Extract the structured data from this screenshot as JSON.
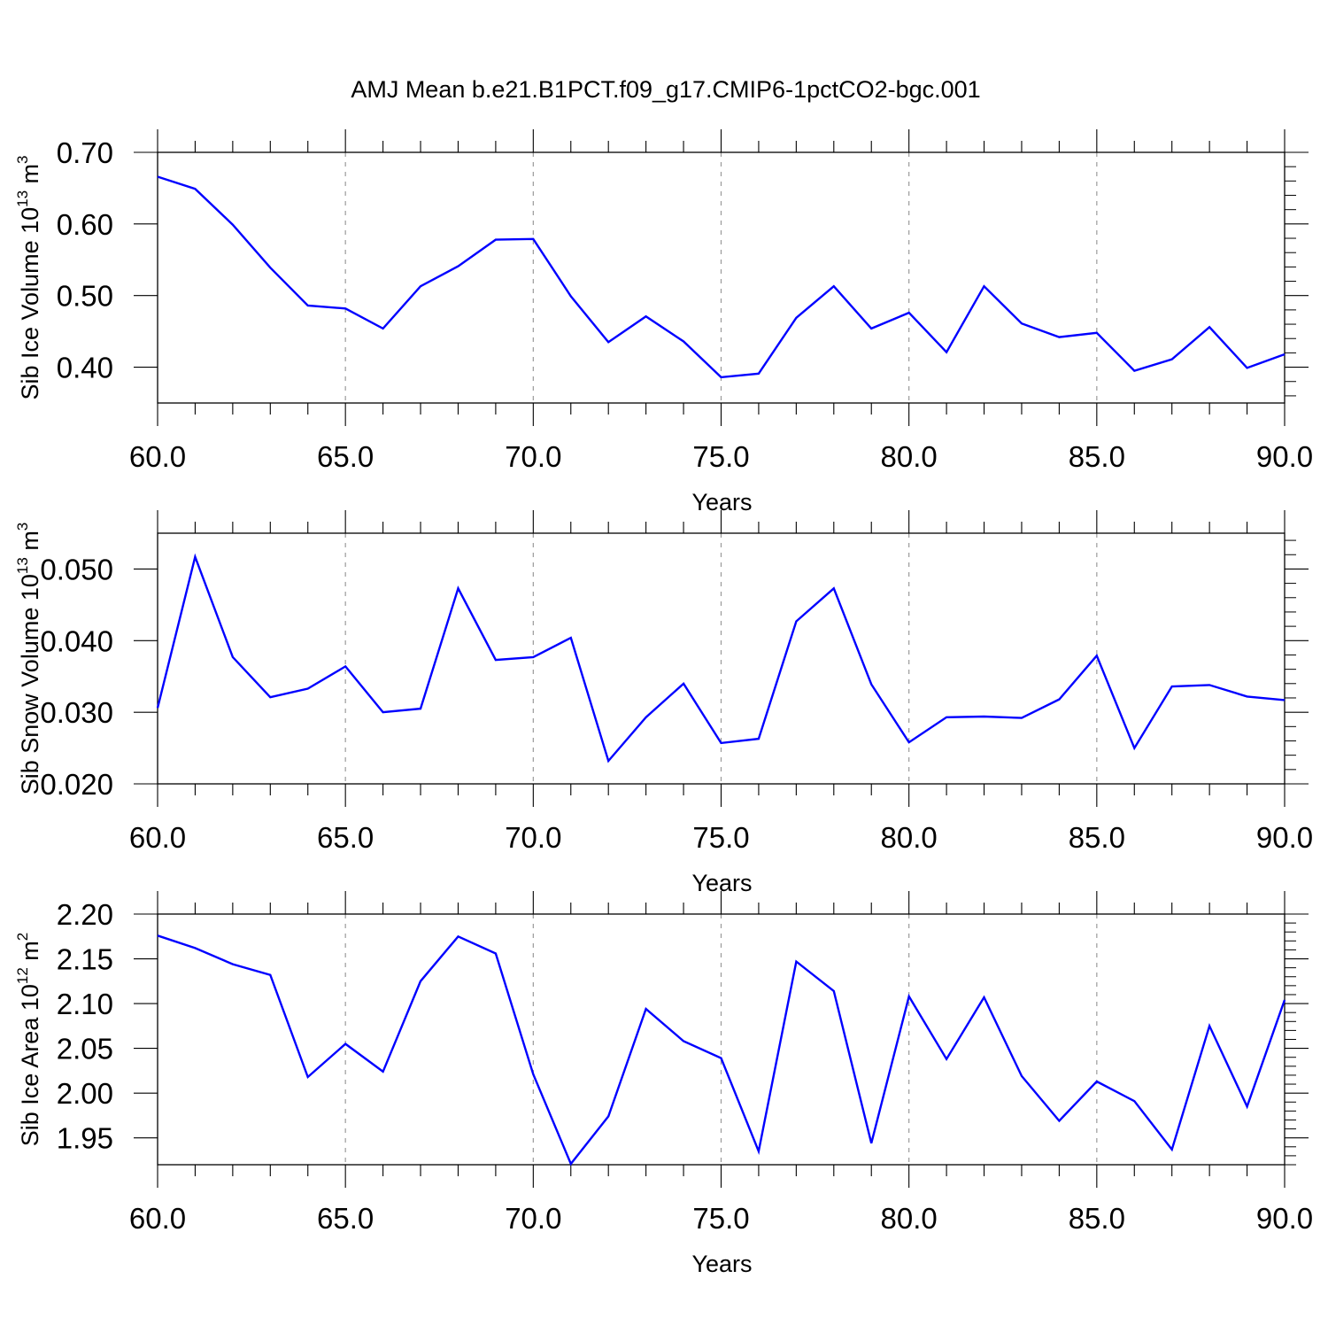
{
  "figure_title": "AMJ Mean b.e21.B1PCT.f09_g17.CMIP6-1pctCO2-bgc.001",
  "colors": {
    "line": "#0000ff",
    "axis": "#000000",
    "grid": "#9a9a9a"
  },
  "chart_data": [
    {
      "type": "line",
      "title": "",
      "xlabel": "Years",
      "ylabel": {
        "text": "Sib Ice Volume 10",
        "sup": "13",
        "tail": " m",
        "sup2": "3"
      },
      "xlim": [
        60,
        90
      ],
      "ylim": [
        0.35,
        0.7
      ],
      "xticks": [
        60,
        65,
        70,
        75,
        80,
        85,
        90
      ],
      "xtick_labels": [
        "60.0",
        "65.0",
        "70.0",
        "75.0",
        "80.0",
        "85.0",
        "90.0"
      ],
      "yticks": [
        0.4,
        0.5,
        0.6,
        0.7
      ],
      "ytick_labels": [
        "0.40",
        "0.50",
        "0.60",
        "0.70"
      ],
      "grid": "vertical dashed at major x ticks",
      "x": [
        60,
        61,
        62,
        63,
        64,
        65,
        66,
        67,
        68,
        69,
        70,
        71,
        72,
        73,
        74,
        75,
        76,
        77,
        78,
        79,
        80,
        81,
        82,
        83,
        84,
        85,
        86,
        87,
        88,
        89,
        90
      ],
      "series": [
        {
          "values": [
            0.666,
            0.649,
            0.599,
            0.539,
            0.486,
            0.482,
            0.454,
            0.513,
            0.541,
            0.578,
            0.579,
            0.499,
            0.435,
            0.471,
            0.436,
            0.386,
            0.391,
            0.469,
            0.513,
            0.454,
            0.476,
            0.421,
            0.513,
            0.461,
            0.442,
            0.448,
            0.395,
            0.411,
            0.456,
            0.399,
            0.418
          ]
        }
      ]
    },
    {
      "type": "line",
      "title": "",
      "xlabel": "Years",
      "ylabel": {
        "text": "Sib Snow Volume 10",
        "sup": "13",
        "tail": " m",
        "sup2": "3"
      },
      "xlim": [
        60,
        90
      ],
      "ylim": [
        0.02,
        0.055
      ],
      "xticks": [
        60,
        65,
        70,
        75,
        80,
        85,
        90
      ],
      "xtick_labels": [
        "60.0",
        "65.0",
        "70.0",
        "75.0",
        "80.0",
        "85.0",
        "90.0"
      ],
      "yticks": [
        0.02,
        0.03,
        0.04,
        0.05
      ],
      "ytick_labels": [
        "0.020",
        "0.030",
        "0.040",
        "0.050"
      ],
      "grid": "vertical dashed at major x ticks",
      "x": [
        60,
        61,
        62,
        63,
        64,
        65,
        66,
        67,
        68,
        69,
        70,
        71,
        72,
        73,
        74,
        75,
        76,
        77,
        78,
        79,
        80,
        81,
        82,
        83,
        84,
        85,
        86,
        87,
        88,
        89,
        90
      ],
      "series": [
        {
          "values": [
            0.0306,
            0.0517,
            0.0377,
            0.0321,
            0.0333,
            0.0364,
            0.03,
            0.0305,
            0.0473,
            0.0373,
            0.0377,
            0.0404,
            0.0232,
            0.0293,
            0.034,
            0.0257,
            0.0263,
            0.0427,
            0.0473,
            0.0339,
            0.0258,
            0.0293,
            0.0294,
            0.0292,
            0.0318,
            0.0379,
            0.025,
            0.0336,
            0.0338,
            0.0322,
            0.0317
          ]
        }
      ]
    },
    {
      "type": "line",
      "title": "",
      "xlabel": "Years",
      "ylabel": {
        "text": "Sib Ice Area 10",
        "sup": "12",
        "tail": " m",
        "sup2": "2"
      },
      "xlim": [
        60,
        90
      ],
      "ylim": [
        1.92,
        2.2
      ],
      "xticks": [
        60,
        65,
        70,
        75,
        80,
        85,
        90
      ],
      "xtick_labels": [
        "60.0",
        "65.0",
        "70.0",
        "75.0",
        "80.0",
        "85.0",
        "90.0"
      ],
      "yticks": [
        1.95,
        2.0,
        2.05,
        2.1,
        2.15,
        2.2
      ],
      "ytick_labels": [
        "1.95",
        "2.00",
        "2.05",
        "2.10",
        "2.15",
        "2.20"
      ],
      "grid": "vertical dashed at major x ticks",
      "x": [
        60,
        61,
        62,
        63,
        64,
        65,
        66,
        67,
        68,
        69,
        70,
        71,
        72,
        73,
        74,
        75,
        76,
        77,
        78,
        79,
        80,
        81,
        82,
        83,
        84,
        85,
        86,
        87,
        88,
        89,
        90
      ],
      "series": [
        {
          "values": [
            2.176,
            2.162,
            2.144,
            2.132,
            2.018,
            2.055,
            2.024,
            2.125,
            2.175,
            2.156,
            2.021,
            1.921,
            1.974,
            2.094,
            2.058,
            2.039,
            1.935,
            2.147,
            2.114,
            1.944,
            2.108,
            2.038,
            2.107,
            2.019,
            1.969,
            2.013,
            1.991,
            1.937,
            2.075,
            1.985,
            2.104
          ]
        }
      ]
    }
  ]
}
